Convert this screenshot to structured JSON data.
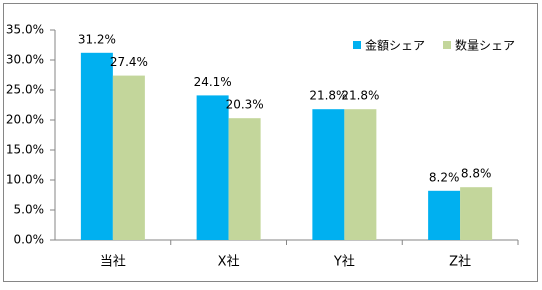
{
  "chart_data": {
    "type": "bar",
    "categories": [
      "当社",
      "X社",
      "Y社",
      "Z社"
    ],
    "series": [
      {
        "name": "金額シェア",
        "color": "#00b0f0",
        "values": [
          31.2,
          24.1,
          21.8,
          8.2
        ],
        "value_labels": [
          "31.2%",
          "24.1%",
          "21.8%",
          "8.2%"
        ]
      },
      {
        "name": "数量シェア",
        "color": "#c3d69b",
        "values": [
          27.4,
          20.3,
          21.8,
          8.8
        ],
        "value_labels": [
          "27.4%",
          "20.3%",
          "21.8%",
          "8.8%"
        ]
      }
    ],
    "ylim": [
      0,
      35
    ],
    "yticks": [
      {
        "value": 0,
        "label": "0.0%"
      },
      {
        "value": 5,
        "label": "5.0%"
      },
      {
        "value": 10,
        "label": "10.0%"
      },
      {
        "value": 15,
        "label": "15.0%"
      },
      {
        "value": 20,
        "label": "20.0%"
      },
      {
        "value": 25,
        "label": "25.0%"
      },
      {
        "value": 30,
        "label": "30.0%"
      },
      {
        "value": 35,
        "label": "35.0%"
      }
    ],
    "grid": false,
    "legend": "top-right"
  }
}
